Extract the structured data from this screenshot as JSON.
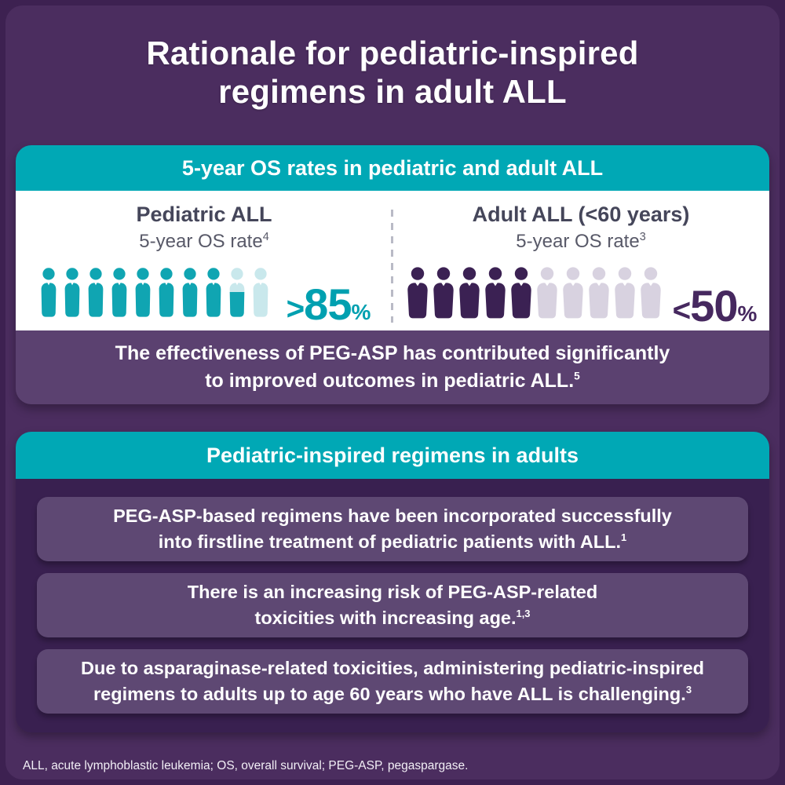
{
  "page": {
    "title_line1": "Rationale for pediatric-inspired",
    "title_line2": "regimens in adult ALL",
    "footnote": "ALL, acute lymphoblastic leukemia; OS, overall survival; PEG-ASP, pegaspargase."
  },
  "colors": {
    "background": "#4B2D5F",
    "teal_header": "#00A8B5",
    "pediatric_icon": "#10A5B2",
    "pediatric_icon_light": "#C9E8EC",
    "adult_icon": "#3B2153",
    "adult_icon_light": "#D8D2E0",
    "pediatric_value": "#00A0B0",
    "adult_value": "#46285F",
    "os_footer_panel": "#5B4170",
    "regimens_body": "#392050",
    "sub_card": "#5E4873"
  },
  "os_card": {
    "header": "5-year OS rates in pediatric and adult ALL",
    "pediatric": {
      "title": "Pediatric ALL",
      "subtitle": "5-year OS rate",
      "subtitle_ref": "4",
      "value_sign": ">",
      "value_number": "85",
      "unit": "%",
      "variant": "child",
      "icons_total": 10,
      "icons_filled": 8,
      "icons_partial": 1
    },
    "adult": {
      "title": "Adult ALL (<60 years)",
      "subtitle": "5-year OS rate",
      "subtitle_ref": "3",
      "value_sign": "<",
      "value_number": "50",
      "unit": "%",
      "variant": "adult",
      "icons_total": 10,
      "icons_filled": 5,
      "icons_partial": 0
    },
    "footer_line1": "The effectiveness of PEG-ASP has contributed significantly",
    "footer_line2": "to improved outcomes in pediatric ALL.",
    "footer_ref": "5"
  },
  "regimens_card": {
    "header": "Pediatric-inspired regimens in adults",
    "items": [
      {
        "line1": "PEG-ASP-based regimens have been incorporated successfully",
        "line2": "into firstline treatment of pediatric patients with ALL.",
        "ref": "1"
      },
      {
        "line1": "There is an increasing risk of PEG-ASP-related",
        "line2": "toxicities with increasing age.",
        "ref": "1,3"
      },
      {
        "line1": "Due to asparaginase-related toxicities, administering pediatric-inspired",
        "line2": "regimens to adults up to age 60 years who have ALL is challenging.",
        "ref": "3"
      }
    ]
  },
  "chart_data": {
    "type": "pictograph-bar",
    "title": "5-year OS rates in pediatric and adult ALL",
    "categories": [
      "Pediatric ALL 5-year OS rate",
      "Adult ALL (<60 years) 5-year OS rate"
    ],
    "values_label": [
      ">85%",
      "<50%"
    ],
    "values_numeric_pct": [
      85,
      50
    ],
    "icons_per_category": 10,
    "icons_filled": [
      8.5,
      5
    ],
    "legend_position": "none",
    "grid": false
  }
}
